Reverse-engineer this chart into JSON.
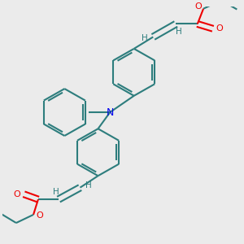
{
  "background_color": "#ebebeb",
  "bond_color": "#2d7d7d",
  "N_color": "#0000ee",
  "O_color": "#ee0000",
  "H_color": "#2d7d7d",
  "lw": 1.5,
  "figsize": [
    3.0,
    3.0
  ],
  "dpi": 100,
  "xlim": [
    0,
    10
  ],
  "ylim": [
    0,
    10
  ]
}
